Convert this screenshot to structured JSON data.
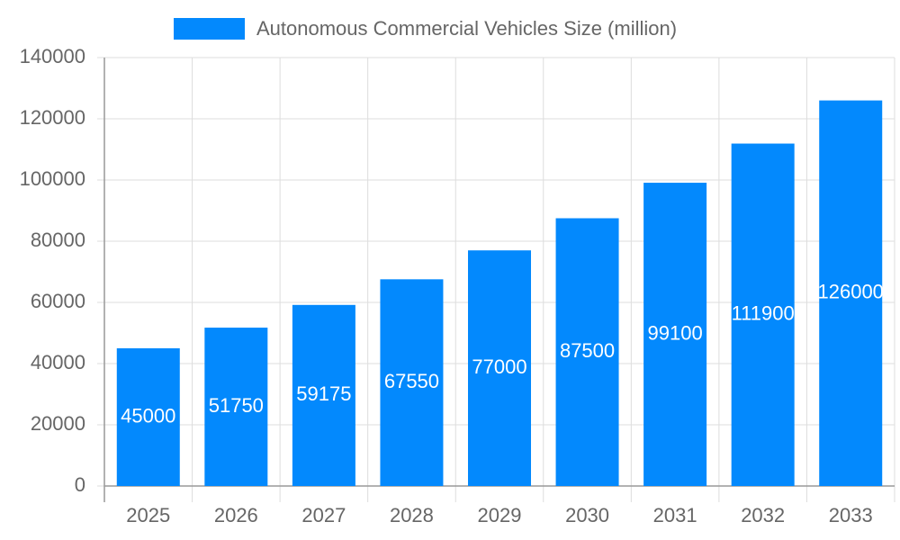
{
  "chart_data": {
    "type": "bar",
    "categories": [
      "2025",
      "2026",
      "2027",
      "2028",
      "2029",
      "2030",
      "2031",
      "2032",
      "2033"
    ],
    "series": [
      {
        "name": "Autonomous Commercial Vehicles Size (million)",
        "color": "#0389fd",
        "values": [
          45000,
          51750,
          59175,
          67550,
          77000,
          87500,
          99100,
          111900,
          126000
        ]
      }
    ],
    "ylim": [
      0,
      140000
    ],
    "yticks": [
      0,
      20000,
      40000,
      60000,
      80000,
      100000,
      120000,
      140000
    ],
    "grid": true,
    "legend": "top"
  }
}
